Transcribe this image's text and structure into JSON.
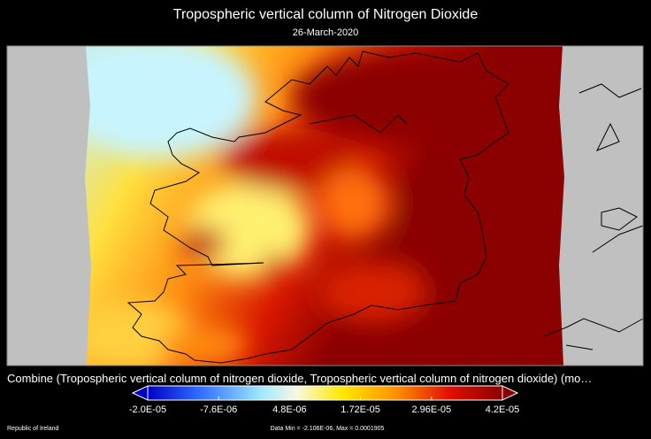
{
  "title": "Tropospheric vertical column of Nitrogen Dioxide",
  "subtitle": "26-March-2020",
  "caption": "Combine (Tropospheric vertical column of nitrogen dioxide, Tropospheric vertical column of nitrogen dioxide) (mo…",
  "colorbar": {
    "ticks": [
      "-2.0E-05",
      "-7.6E-06",
      "4.8E-06",
      "1.72E-05",
      "2.96E-05",
      "4.2E-05"
    ]
  },
  "footer": {
    "region": "Republic of Ireland",
    "data_range": "Data Min = -2.106E-06, Max = 0.0001905"
  }
}
